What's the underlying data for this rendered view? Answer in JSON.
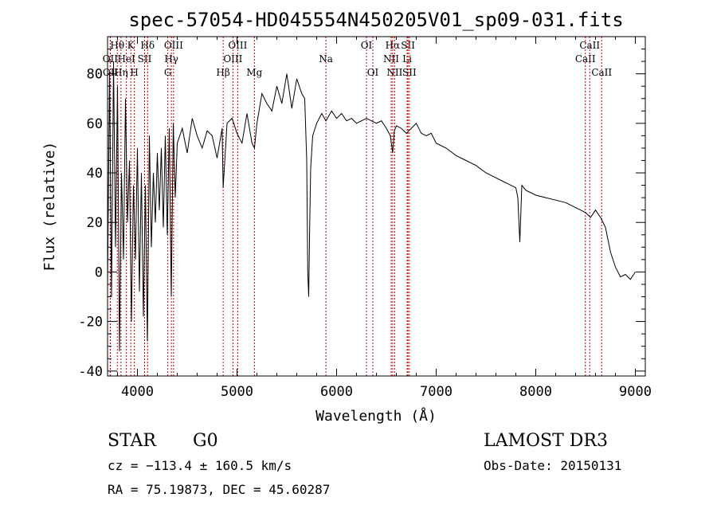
{
  "chart_data": {
    "type": "line",
    "title": "spec-57054-HD045554N450205V01_sp09-031.fits",
    "xlabel": "Wavelength (Å)",
    "ylabel": "Flux (relative)",
    "xlim": [
      3700,
      9100
    ],
    "ylim": [
      -42,
      95
    ],
    "xticks": [
      4000,
      5000,
      6000,
      7000,
      8000,
      9000
    ],
    "yticks": [
      -40,
      -20,
      0,
      20,
      40,
      60,
      80
    ],
    "grid": false,
    "line_color": "#000000",
    "marker_color": "#cc0000",
    "series": [
      {
        "x": [
          3700,
          3720,
          3740,
          3760,
          3780,
          3800,
          3820,
          3840,
          3860,
          3880,
          3900,
          3920,
          3940,
          3960,
          3980,
          4000,
          4020,
          4040,
          4060,
          4080,
          4100,
          4120,
          4140,
          4160,
          4180,
          4200,
          4220,
          4240,
          4260,
          4280,
          4300,
          4320,
          4340,
          4360,
          4380,
          4400,
          4450,
          4500,
          4550,
          4600,
          4650,
          4700,
          4750,
          4800,
          4850,
          4861,
          4900,
          4950,
          5000,
          5050,
          5100,
          5150,
          5175,
          5200,
          5250,
          5300,
          5350,
          5400,
          5450,
          5500,
          5550,
          5600,
          5650,
          5680,
          5700,
          5710,
          5720,
          5730,
          5740,
          5760,
          5800,
          5850,
          5893,
          5950,
          6000,
          6050,
          6100,
          6150,
          6200,
          6250,
          6300,
          6350,
          6400,
          6450,
          6500,
          6540,
          6563,
          6580,
          6600,
          6650,
          6700,
          6750,
          6800,
          6850,
          6900,
          6950,
          7000,
          7100,
          7200,
          7300,
          7400,
          7500,
          7600,
          7700,
          7800,
          7820,
          7840,
          7860,
          7900,
          8000,
          8100,
          8200,
          8300,
          8400,
          8500,
          8550,
          8600,
          8650,
          8700,
          8750,
          8800,
          8850,
          8900,
          8950,
          9000
        ],
        "y": [
          -5,
          80,
          -10,
          85,
          10,
          75,
          -32,
          40,
          5,
          70,
          20,
          45,
          -20,
          35,
          5,
          50,
          -8,
          40,
          -18,
          35,
          -28,
          55,
          10,
          40,
          20,
          48,
          25,
          50,
          18,
          55,
          15,
          58,
          -10,
          60,
          30,
          52,
          58,
          48,
          62,
          55,
          50,
          57,
          55,
          46,
          58,
          34,
          60,
          62,
          56,
          52,
          64,
          52,
          50,
          60,
          72,
          68,
          65,
          75,
          68,
          80,
          66,
          78,
          72,
          70,
          45,
          0,
          -10,
          20,
          42,
          55,
          60,
          64,
          61,
          65,
          62,
          64,
          61,
          62,
          60,
          61,
          62,
          61,
          60,
          61,
          58,
          55,
          48,
          57,
          59,
          58,
          56,
          58,
          60,
          56,
          55,
          56,
          52,
          50,
          47,
          45,
          43,
          40,
          38,
          36,
          34,
          30,
          12,
          35,
          33,
          31,
          30,
          29,
          28,
          26,
          24,
          22,
          25,
          22,
          18,
          8,
          2,
          -2,
          -1,
          -3,
          0
        ]
      }
    ],
    "line_markers": [
      {
        "label": "Hθ",
        "x": 3798,
        "row": 0
      },
      {
        "label": "K",
        "x": 3934,
        "row": 0
      },
      {
        "label": "Hδ",
        "x": 4102,
        "row": 0
      },
      {
        "label": "OIII",
        "x": 4363,
        "row": 0
      },
      {
        "label": "OIII",
        "x": 5007,
        "row": 0
      },
      {
        "label": "OII",
        "x": 3727,
        "row": 1
      },
      {
        "label": "HeI",
        "x": 3889,
        "row": 1
      },
      {
        "label": "SII",
        "x": 4072,
        "row": 1
      },
      {
        "label": "Hγ",
        "x": 4341,
        "row": 1
      },
      {
        "label": "OIII",
        "x": 4959,
        "row": 1
      },
      {
        "label": "OII",
        "x": 3729,
        "row": 2
      },
      {
        "label": "Hη",
        "x": 3835,
        "row": 2
      },
      {
        "label": "H",
        "x": 3969,
        "row": 2
      },
      {
        "label": "G",
        "x": 4305,
        "row": 2
      },
      {
        "label": "Hβ",
        "x": 4861,
        "row": 2
      },
      {
        "label": "Mg",
        "x": 5175,
        "row": 2
      },
      {
        "label": "Na",
        "x": 5893,
        "row": 1
      },
      {
        "label": "OI",
        "x": 6300,
        "row": 0
      },
      {
        "label": "OI",
        "x": 6364,
        "row": 2
      },
      {
        "label": "Hα",
        "x": 6563,
        "row": 0
      },
      {
        "label": "NII",
        "x": 6548,
        "row": 1
      },
      {
        "label": "NII",
        "x": 6583,
        "row": 2
      },
      {
        "label": "SII",
        "x": 6717,
        "row": 0
      },
      {
        "label": "Li",
        "x": 6708,
        "row": 1
      },
      {
        "label": "SII",
        "x": 6731,
        "row": 2
      },
      {
        "label": "CaII",
        "x": 8498,
        "row": 1
      },
      {
        "label": "CaII",
        "x": 8542,
        "row": 0
      },
      {
        "label": "CaII",
        "x": 8662,
        "row": 2
      }
    ]
  },
  "info": {
    "object_class": "STAR",
    "subclass": "G0",
    "survey": "LAMOST DR3",
    "redshift_line": "cz = −113.4 ± 160.5 km/s",
    "obs_date": "Obs-Date: 20150131",
    "coords": "RA =  75.19873, DEC =  45.60287"
  }
}
